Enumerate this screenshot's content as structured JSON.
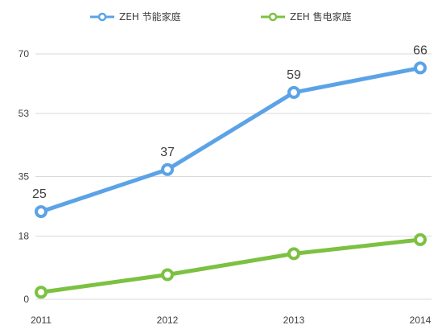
{
  "chart_data": {
    "type": "line",
    "categories": [
      "2011",
      "2012",
      "2013",
      "2014"
    ],
    "series": [
      {
        "name": "ZEH 节能家庭",
        "values": [
          25,
          37,
          59,
          66
        ],
        "color": "#5ba3e6",
        "data_labels": [
          "25",
          "37",
          "59",
          "66"
        ]
      },
      {
        "name": "ZEH 售电家庭",
        "values": [
          2,
          7,
          13,
          17
        ],
        "color": "#7cc142"
      }
    ],
    "yticks": [
      0,
      18,
      35,
      53,
      70
    ],
    "ylim": [
      0,
      70
    ],
    "grid": true,
    "legend_position": "top"
  }
}
